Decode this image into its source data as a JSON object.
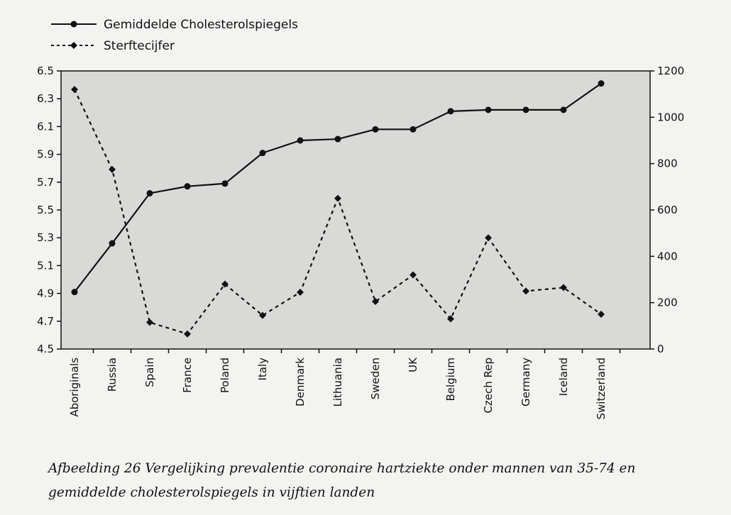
{
  "chart_data": {
    "type": "line",
    "categories": [
      "Aboriginals",
      "Russia",
      "Spain",
      "France",
      "Poland",
      "Italy",
      "Denmark",
      "Lithuania",
      "Sweden",
      "UK",
      "Belgium",
      "Czech Rep",
      "Germany",
      "Iceland",
      "Switzerland"
    ],
    "series": [
      {
        "name": "Gemiddelde Cholesterolspiegels",
        "axis": "left",
        "style": "solid",
        "marker": "circle",
        "values": [
          4.91,
          5.26,
          5.62,
          5.67,
          5.69,
          5.91,
          6.0,
          6.01,
          6.08,
          6.08,
          6.21,
          6.22,
          6.22,
          6.22,
          6.41
        ]
      },
      {
        "name": "Sterftecijfer",
        "axis": "right",
        "style": "dashed",
        "marker": "diamond",
        "values": [
          1120,
          775,
          115,
          65,
          280,
          145,
          245,
          650,
          205,
          320,
          130,
          480,
          250,
          265,
          150
        ]
      }
    ],
    "yleft": {
      "min": 4.5,
      "max": 6.5,
      "ticks": [
        "4.5",
        "4.7",
        "4.9",
        "5.1",
        "5.3",
        "5.5",
        "5.7",
        "5.9",
        "6.1",
        "6.3",
        "6.5"
      ]
    },
    "yright": {
      "min": 0,
      "max": 1200,
      "ticks": [
        "0",
        "200",
        "400",
        "600",
        "800",
        "1000",
        "1200"
      ]
    },
    "legend": "top-left",
    "grid": false
  },
  "caption": {
    "line1": "Afbeelding 26 Vergelijking prevalentie coronaire hartziekte onder mannen van 35-74 en",
    "line2": "gemiddelde cholesterolspiegels in vijftien landen"
  },
  "colors": {
    "plot_bg": "#d9d9d7",
    "page_bg": "#f3f3f1",
    "ink": "#111111"
  }
}
